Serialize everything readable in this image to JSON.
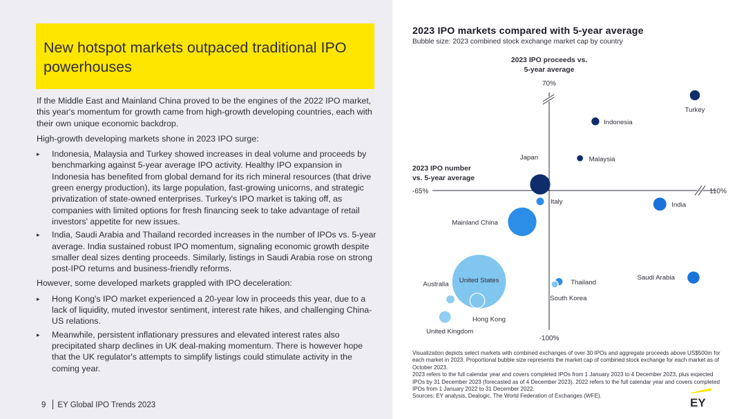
{
  "page": {
    "title": "New hotspot markets outpaced traditional IPO powerhouses",
    "intro": "If the Middle East and Mainland China proved to be the engines of the 2022 IPO market, this year's momentum for growth came from high-growth developing countries, each with their own unique economic backdrop.",
    "section1_heading": "High-growth developing markets shone in 2023 IPO surge:",
    "section1_bullets": [
      "Indonesia, Malaysia and Turkey showed increases in deal volume and proceeds by benchmarking against 5-year average IPO activity. Healthy IPO expansion in Indonesia has benefited from global demand for its rich mineral resources (that drive green energy production), its large population, fast-growing unicorns, and strategic privatization of state-owned enterprises. Turkey's IPO market is taking off, as companies with limited options for fresh financing seek to take advantage of retail investors' appetite for new issues.",
      "India, Saudi Arabia and Thailand recorded increases in the number of IPOs vs. 5-year average. India sustained robust IPO momentum, signaling economic growth despite smaller deal sizes denting proceeds. Similarly, listings in Saudi Arabia rose on strong post-IPO returns and business-friendly reforms."
    ],
    "section2_heading": "However, some developed markets grappled with IPO deceleration:",
    "section2_bullets": [
      "Hong Kong's IPO market experienced a 20-year low in proceeds this year, due to a lack of liquidity, muted investor sentiment, interest rate hikes, and challenging China-US relations.",
      "Meanwhile, persistent inflationary pressures and elevated interest rates also precipitated sharp declines in UK deal-making momentum. There is however hope that the UK regulator's attempts to simplify listings could stimulate activity in the coming year."
    ],
    "footer_page": "9",
    "footer_doc": "EY Global IPO Trends 2023"
  },
  "chart_data": {
    "type": "scatter",
    "title": "2023 IPO markets compared with 5-year average",
    "subtitle": "Bubble size: 2023 combined stock exchange market cap by country",
    "ylabel_line1": "2023 IPO proceeds vs.",
    "ylabel_line2": "5-year average",
    "xlabel_line1": "2023 IPO number",
    "xlabel_line2": "vs. 5-year average",
    "x_min_label": "-65%",
    "x_max_label": "110%",
    "y_min_label": "-100%",
    "y_max_label": "70%",
    "xlim": [
      -65,
      110
    ],
    "ylim": [
      -100,
      70
    ],
    "axis_breaks": true,
    "grid": false,
    "colors": {
      "dark_navy": "#0f2d6b",
      "mid_blue": "#1a73d9",
      "bright_blue": "#2c8ee6",
      "light_blue": "#80c6ef",
      "pale_blue": "#8fcdf2"
    },
    "points": [
      {
        "name": "Turkey",
        "x": 104,
        "y": 62,
        "size": 0.25,
        "color": "#0f2d6b"
      },
      {
        "name": "Indonesia",
        "x": 33,
        "y": 45,
        "size": 0.15,
        "color": "#0f2d6b"
      },
      {
        "name": "Malaysia",
        "x": 22,
        "y": 21,
        "size": 0.09,
        "color": "#0f2d6b"
      },
      {
        "name": "Japan",
        "x": -5,
        "y": 4,
        "size": 1.0,
        "color": "#0f2d6b"
      },
      {
        "name": "Italy",
        "x": -5,
        "y": -8,
        "size": 0.14,
        "color": "#2c8ee6"
      },
      {
        "name": "India",
        "x": 79,
        "y": -10,
        "size": 0.42,
        "color": "#1a73d9"
      },
      {
        "name": "Mainland China",
        "x": -15,
        "y": -23,
        "size": 2.0,
        "color": "#2c8ee6"
      },
      {
        "name": "United States",
        "x": -39,
        "y": -67,
        "size": 7.1,
        "color": "#80c6ef"
      },
      {
        "name": "Hong Kong",
        "x": -40,
        "y": -81,
        "size": 0.54,
        "color": "#80c6ef"
      },
      {
        "name": "Thailand",
        "x": 7,
        "y": -67,
        "size": 0.13,
        "color": "#2c8ee6"
      },
      {
        "name": "South Korea",
        "x": 4,
        "y": -69,
        "size": 0.12,
        "color": "#80c6ef"
      },
      {
        "name": "Saudi Arabia",
        "x": 103,
        "y": -64,
        "size": 0.36,
        "color": "#1a73d9"
      },
      {
        "name": "Australia",
        "x": -55,
        "y": -80,
        "size": 0.16,
        "color": "#8fcdf2"
      },
      {
        "name": "United Kingdom",
        "x": -58,
        "y": -93,
        "size": 0.33,
        "color": "#8fcdf2"
      }
    ],
    "note_lines": [
      "Visualization depicts select markets with combined exchanges of over 30 IPOs and aggregate proceeds above US$500m for each market in 2023. Proportional bubble size represents the market cap of combined stock exchange for each market as of October 2023.",
      "2023 refers to the full calendar year and covers completed IPOs from 1 January 2023 to 4 December 2023, plus expected IPOs by 31 December 2023 (forecasted as of 4 December 2023). 2022 refers to the full calendar year and covers completed IPOs from 1 January 2022 to 31 December 2022.",
      "Sources: EY analysis, Dealogic, The World Federation of Exchanges (WFE)."
    ]
  },
  "logo": {
    "text": "EY",
    "color": "#ffe600"
  }
}
